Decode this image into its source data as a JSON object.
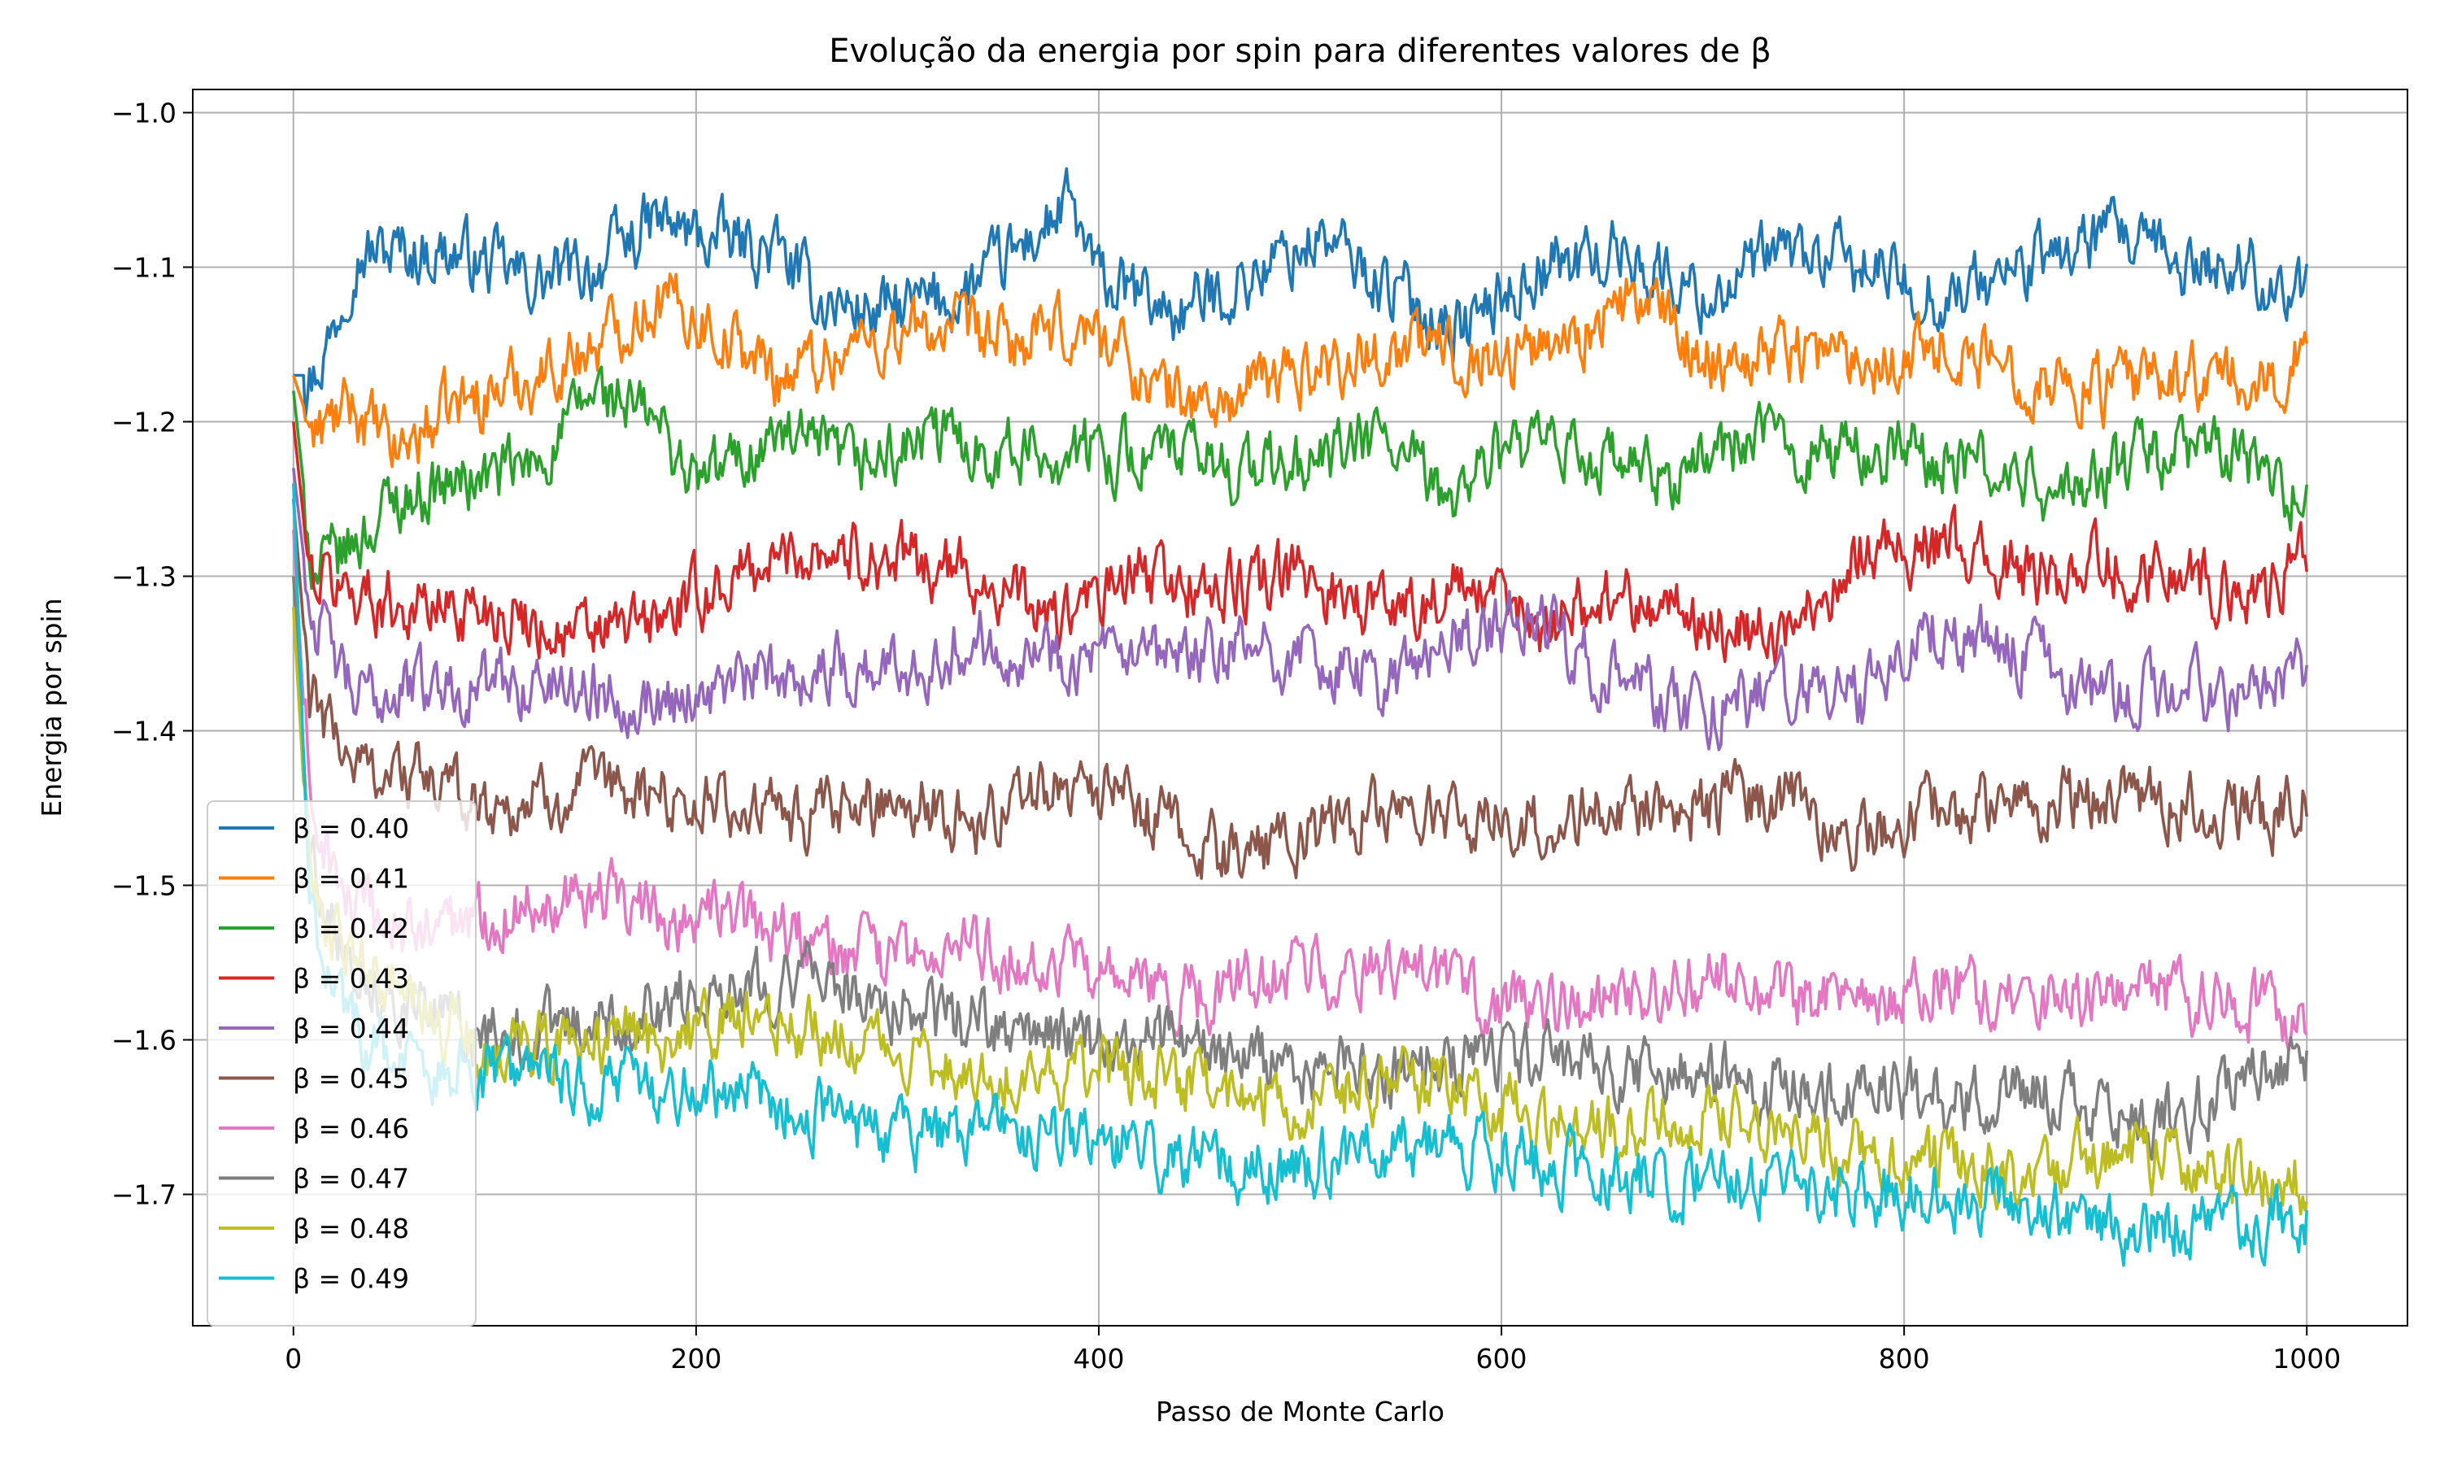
{
  "chart_data": {
    "type": "line",
    "title": "Evolução da energia por spin para diferentes valores de β",
    "xlabel": "Passo de Monte Carlo",
    "ylabel": "Energia por spin",
    "xlim": [
      -50,
      1050
    ],
    "ylim": [
      -1.785,
      -0.985
    ],
    "xticks": [
      0,
      200,
      400,
      600,
      800,
      1000
    ],
    "xtick_labels": [
      "0",
      "200",
      "400",
      "600",
      "800",
      "1000"
    ],
    "yticks": [
      -1.7,
      -1.6,
      -1.5,
      -1.4,
      -1.3,
      -1.2,
      -1.1,
      -1.0
    ],
    "ytick_labels": [
      "−1.7",
      "−1.6",
      "−1.5",
      "−1.4",
      "−1.3",
      "−1.2",
      "−1.1",
      "−1.0"
    ],
    "grid": true,
    "legend_position": "lower-left",
    "x_range": [
      0,
      1000
    ],
    "series": [
      {
        "name": "β = 0.40",
        "color": "#1f77b4",
        "keypoints": [
          [
            0,
            -1.17
          ],
          [
            10,
            -1.17
          ],
          [
            20,
            -1.14
          ],
          [
            30,
            -1.09
          ],
          [
            50,
            -1.09
          ],
          [
            80,
            -1.09
          ],
          [
            120,
            -1.11
          ],
          [
            150,
            -1.1
          ],
          [
            180,
            -1.07
          ],
          [
            200,
            -1.08
          ],
          [
            240,
            -1.09
          ],
          [
            260,
            -1.12
          ],
          [
            290,
            -1.13
          ],
          [
            330,
            -1.12
          ],
          [
            360,
            -1.09
          ],
          [
            385,
            -1.06
          ],
          [
            400,
            -1.11
          ],
          [
            440,
            -1.13
          ],
          [
            470,
            -1.11
          ],
          [
            510,
            -1.08
          ],
          [
            540,
            -1.11
          ],
          [
            580,
            -1.14
          ],
          [
            620,
            -1.1
          ],
          [
            660,
            -1.09
          ],
          [
            700,
            -1.12
          ],
          [
            740,
            -1.09
          ],
          [
            780,
            -1.1
          ],
          [
            820,
            -1.12
          ],
          [
            860,
            -1.1
          ],
          [
            900,
            -1.08
          ],
          [
            940,
            -1.1
          ],
          [
            970,
            -1.1
          ],
          [
            1000,
            -1.12
          ]
        ]
      },
      {
        "name": "β = 0.41",
        "color": "#ff7f0e",
        "keypoints": [
          [
            0,
            -1.17
          ],
          [
            10,
            -1.21
          ],
          [
            30,
            -1.19
          ],
          [
            50,
            -1.22
          ],
          [
            80,
            -1.19
          ],
          [
            120,
            -1.17
          ],
          [
            150,
            -1.15
          ],
          [
            180,
            -1.12
          ],
          [
            200,
            -1.13
          ],
          [
            240,
            -1.17
          ],
          [
            280,
            -1.15
          ],
          [
            320,
            -1.14
          ],
          [
            360,
            -1.15
          ],
          [
            400,
            -1.14
          ],
          [
            430,
            -1.18
          ],
          [
            460,
            -1.19
          ],
          [
            490,
            -1.17
          ],
          [
            520,
            -1.16
          ],
          [
            560,
            -1.15
          ],
          [
            600,
            -1.16
          ],
          [
            640,
            -1.14
          ],
          [
            670,
            -1.12
          ],
          [
            700,
            -1.16
          ],
          [
            740,
            -1.15
          ],
          [
            780,
            -1.16
          ],
          [
            820,
            -1.15
          ],
          [
            860,
            -1.17
          ],
          [
            900,
            -1.18
          ],
          [
            940,
            -1.17
          ],
          [
            980,
            -1.18
          ],
          [
            1000,
            -1.15
          ]
        ]
      },
      {
        "name": "β = 0.42",
        "color": "#2ca02c",
        "keypoints": [
          [
            0,
            -1.18
          ],
          [
            10,
            -1.3
          ],
          [
            30,
            -1.28
          ],
          [
            50,
            -1.25
          ],
          [
            80,
            -1.24
          ],
          [
            120,
            -1.23
          ],
          [
            150,
            -1.18
          ],
          [
            180,
            -1.2
          ],
          [
            200,
            -1.24
          ],
          [
            240,
            -1.21
          ],
          [
            280,
            -1.23
          ],
          [
            320,
            -1.21
          ],
          [
            360,
            -1.22
          ],
          [
            400,
            -1.22
          ],
          [
            430,
            -1.22
          ],
          [
            470,
            -1.23
          ],
          [
            500,
            -1.23
          ],
          [
            540,
            -1.21
          ],
          [
            570,
            -1.25
          ],
          [
            600,
            -1.22
          ],
          [
            640,
            -1.22
          ],
          [
            680,
            -1.24
          ],
          [
            720,
            -1.21
          ],
          [
            760,
            -1.22
          ],
          [
            800,
            -1.22
          ],
          [
            840,
            -1.23
          ],
          [
            880,
            -1.25
          ],
          [
            920,
            -1.22
          ],
          [
            960,
            -1.22
          ],
          [
            1000,
            -1.25
          ]
        ]
      },
      {
        "name": "β = 0.43",
        "color": "#d62728",
        "keypoints": [
          [
            0,
            -1.2
          ],
          [
            8,
            -1.3
          ],
          [
            30,
            -1.31
          ],
          [
            60,
            -1.32
          ],
          [
            100,
            -1.32
          ],
          [
            140,
            -1.34
          ],
          [
            180,
            -1.33
          ],
          [
            220,
            -1.3
          ],
          [
            260,
            -1.28
          ],
          [
            300,
            -1.29
          ],
          [
            340,
            -1.3
          ],
          [
            380,
            -1.33
          ],
          [
            420,
            -1.3
          ],
          [
            460,
            -1.31
          ],
          [
            500,
            -1.3
          ],
          [
            540,
            -1.32
          ],
          [
            580,
            -1.31
          ],
          [
            620,
            -1.33
          ],
          [
            660,
            -1.31
          ],
          [
            700,
            -1.33
          ],
          [
            740,
            -1.34
          ],
          [
            780,
            -1.28
          ],
          [
            820,
            -1.28
          ],
          [
            860,
            -1.3
          ],
          [
            900,
            -1.29
          ],
          [
            940,
            -1.3
          ],
          [
            980,
            -1.31
          ],
          [
            1000,
            -1.29
          ]
        ]
      },
      {
        "name": "β = 0.44",
        "color": "#9467bd",
        "keypoints": [
          [
            0,
            -1.23
          ],
          [
            8,
            -1.32
          ],
          [
            30,
            -1.38
          ],
          [
            60,
            -1.37
          ],
          [
            100,
            -1.37
          ],
          [
            140,
            -1.37
          ],
          [
            180,
            -1.38
          ],
          [
            220,
            -1.37
          ],
          [
            260,
            -1.36
          ],
          [
            300,
            -1.36
          ],
          [
            340,
            -1.34
          ],
          [
            380,
            -1.35
          ],
          [
            420,
            -1.36
          ],
          [
            460,
            -1.35
          ],
          [
            500,
            -1.35
          ],
          [
            540,
            -1.37
          ],
          [
            580,
            -1.34
          ],
          [
            620,
            -1.33
          ],
          [
            660,
            -1.37
          ],
          [
            700,
            -1.39
          ],
          [
            740,
            -1.37
          ],
          [
            780,
            -1.38
          ],
          [
            820,
            -1.33
          ],
          [
            860,
            -1.35
          ],
          [
            900,
            -1.38
          ],
          [
            940,
            -1.37
          ],
          [
            980,
            -1.38
          ],
          [
            1000,
            -1.36
          ]
        ]
      },
      {
        "name": "β = 0.45",
        "color": "#8c564b",
        "keypoints": [
          [
            0,
            -1.25
          ],
          [
            8,
            -1.38
          ],
          [
            30,
            -1.42
          ],
          [
            60,
            -1.43
          ],
          [
            100,
            -1.45
          ],
          [
            140,
            -1.44
          ],
          [
            180,
            -1.44
          ],
          [
            220,
            -1.45
          ],
          [
            260,
            -1.46
          ],
          [
            300,
            -1.44
          ],
          [
            340,
            -1.46
          ],
          [
            380,
            -1.43
          ],
          [
            420,
            -1.45
          ],
          [
            460,
            -1.48
          ],
          [
            500,
            -1.47
          ],
          [
            540,
            -1.45
          ],
          [
            580,
            -1.46
          ],
          [
            620,
            -1.46
          ],
          [
            660,
            -1.45
          ],
          [
            700,
            -1.45
          ],
          [
            740,
            -1.44
          ],
          [
            780,
            -1.47
          ],
          [
            820,
            -1.45
          ],
          [
            860,
            -1.45
          ],
          [
            900,
            -1.44
          ],
          [
            940,
            -1.45
          ],
          [
            980,
            -1.46
          ],
          [
            1000,
            -1.44
          ]
        ]
      },
      {
        "name": "β = 0.46",
        "color": "#e377c2",
        "keypoints": [
          [
            0,
            -1.27
          ],
          [
            8,
            -1.45
          ],
          [
            30,
            -1.52
          ],
          [
            60,
            -1.53
          ],
          [
            100,
            -1.52
          ],
          [
            140,
            -1.5
          ],
          [
            180,
            -1.52
          ],
          [
            220,
            -1.52
          ],
          [
            260,
            -1.54
          ],
          [
            300,
            -1.55
          ],
          [
            340,
            -1.54
          ],
          [
            380,
            -1.55
          ],
          [
            420,
            -1.57
          ],
          [
            460,
            -1.57
          ],
          [
            500,
            -1.55
          ],
          [
            540,
            -1.56
          ],
          [
            580,
            -1.57
          ],
          [
            620,
            -1.58
          ],
          [
            660,
            -1.58
          ],
          [
            700,
            -1.56
          ],
          [
            740,
            -1.57
          ],
          [
            780,
            -1.58
          ],
          [
            820,
            -1.56
          ],
          [
            860,
            -1.58
          ],
          [
            900,
            -1.57
          ],
          [
            940,
            -1.57
          ],
          [
            980,
            -1.58
          ],
          [
            1000,
            -1.6
          ]
        ]
      },
      {
        "name": "β = 0.47",
        "color": "#7f7f7f",
        "keypoints": [
          [
            0,
            -1.3
          ],
          [
            8,
            -1.48
          ],
          [
            30,
            -1.55
          ],
          [
            60,
            -1.58
          ],
          [
            100,
            -1.6
          ],
          [
            140,
            -1.59
          ],
          [
            180,
            -1.58
          ],
          [
            220,
            -1.56
          ],
          [
            260,
            -1.56
          ],
          [
            300,
            -1.58
          ],
          [
            340,
            -1.59
          ],
          [
            380,
            -1.6
          ],
          [
            420,
            -1.6
          ],
          [
            460,
            -1.61
          ],
          [
            500,
            -1.62
          ],
          [
            540,
            -1.62
          ],
          [
            580,
            -1.61
          ],
          [
            620,
            -1.61
          ],
          [
            660,
            -1.62
          ],
          [
            700,
            -1.62
          ],
          [
            740,
            -1.63
          ],
          [
            780,
            -1.63
          ],
          [
            820,
            -1.64
          ],
          [
            860,
            -1.63
          ],
          [
            900,
            -1.65
          ],
          [
            940,
            -1.65
          ],
          [
            980,
            -1.62
          ],
          [
            1000,
            -1.62
          ]
        ]
      },
      {
        "name": "β = 0.48",
        "color": "#bcbd22",
        "keypoints": [
          [
            0,
            -1.32
          ],
          [
            8,
            -1.5
          ],
          [
            30,
            -1.55
          ],
          [
            60,
            -1.58
          ],
          [
            100,
            -1.61
          ],
          [
            140,
            -1.6
          ],
          [
            180,
            -1.6
          ],
          [
            220,
            -1.59
          ],
          [
            260,
            -1.59
          ],
          [
            300,
            -1.61
          ],
          [
            340,
            -1.62
          ],
          [
            380,
            -1.62
          ],
          [
            420,
            -1.62
          ],
          [
            460,
            -1.63
          ],
          [
            500,
            -1.64
          ],
          [
            540,
            -1.63
          ],
          [
            580,
            -1.63
          ],
          [
            620,
            -1.65
          ],
          [
            660,
            -1.66
          ],
          [
            700,
            -1.65
          ],
          [
            740,
            -1.66
          ],
          [
            780,
            -1.67
          ],
          [
            820,
            -1.68
          ],
          [
            860,
            -1.69
          ],
          [
            900,
            -1.67
          ],
          [
            940,
            -1.68
          ],
          [
            980,
            -1.69
          ],
          [
            1000,
            -1.69
          ]
        ]
      },
      {
        "name": "β = 0.49",
        "color": "#17becf",
        "keypoints": [
          [
            0,
            -1.24
          ],
          [
            8,
            -1.52
          ],
          [
            30,
            -1.59
          ],
          [
            60,
            -1.62
          ],
          [
            100,
            -1.62
          ],
          [
            140,
            -1.63
          ],
          [
            180,
            -1.63
          ],
          [
            220,
            -1.63
          ],
          [
            260,
            -1.65
          ],
          [
            300,
            -1.66
          ],
          [
            340,
            -1.66
          ],
          [
            380,
            -1.66
          ],
          [
            420,
            -1.67
          ],
          [
            460,
            -1.68
          ],
          [
            500,
            -1.68
          ],
          [
            540,
            -1.67
          ],
          [
            580,
            -1.67
          ],
          [
            620,
            -1.68
          ],
          [
            660,
            -1.69
          ],
          [
            700,
            -1.69
          ],
          [
            740,
            -1.7
          ],
          [
            780,
            -1.7
          ],
          [
            820,
            -1.7
          ],
          [
            860,
            -1.71
          ],
          [
            900,
            -1.72
          ],
          [
            940,
            -1.72
          ],
          [
            980,
            -1.72
          ],
          [
            1000,
            -1.71
          ]
        ]
      }
    ]
  }
}
